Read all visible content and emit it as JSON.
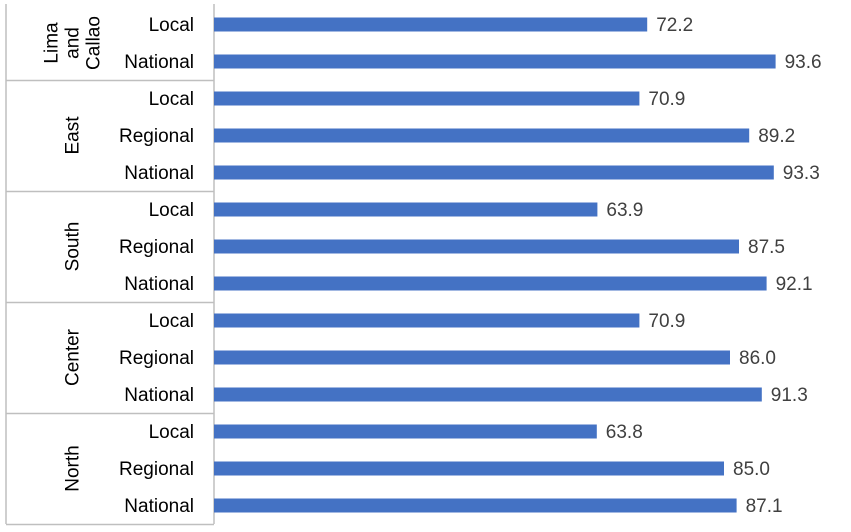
{
  "chart_data": {
    "type": "bar",
    "orientation": "horizontal",
    "title": "",
    "xlabel": "",
    "ylabel": "",
    "xlim": [
      0,
      100
    ],
    "grid": false,
    "legend": "none",
    "bar_color": "#4472C4",
    "groups": [
      {
        "label": [
          "Lima",
          "and",
          "Callao"
        ],
        "bars": [
          {
            "category": "Local",
            "value": 72.2,
            "label": "72.2"
          },
          {
            "category": "National",
            "value": 93.6,
            "label": "93.6"
          }
        ]
      },
      {
        "label": [
          "East"
        ],
        "bars": [
          {
            "category": "Local",
            "value": 70.9,
            "label": "70.9"
          },
          {
            "category": "Regional",
            "value": 89.2,
            "label": "89.2"
          },
          {
            "category": "National",
            "value": 93.3,
            "label": "93.3"
          }
        ]
      },
      {
        "label": [
          "South"
        ],
        "bars": [
          {
            "category": "Local",
            "value": 63.9,
            "label": "63.9"
          },
          {
            "category": "Regional",
            "value": 87.5,
            "label": "87.5"
          },
          {
            "category": "National",
            "value": 92.1,
            "label": "92.1"
          }
        ]
      },
      {
        "label": [
          "Center"
        ],
        "bars": [
          {
            "category": "Local",
            "value": 70.9,
            "label": "70.9"
          },
          {
            "category": "Regional",
            "value": 86.0,
            "label": "86.0"
          },
          {
            "category": "National",
            "value": 91.3,
            "label": "91.3"
          }
        ]
      },
      {
        "label": [
          "North"
        ],
        "bars": [
          {
            "category": "Local",
            "value": 63.8,
            "label": "63.8"
          },
          {
            "category": "Regional",
            "value": 85.0,
            "label": "85.0"
          },
          {
            "category": "National",
            "value": 87.1,
            "label": "87.1"
          }
        ]
      }
    ]
  }
}
